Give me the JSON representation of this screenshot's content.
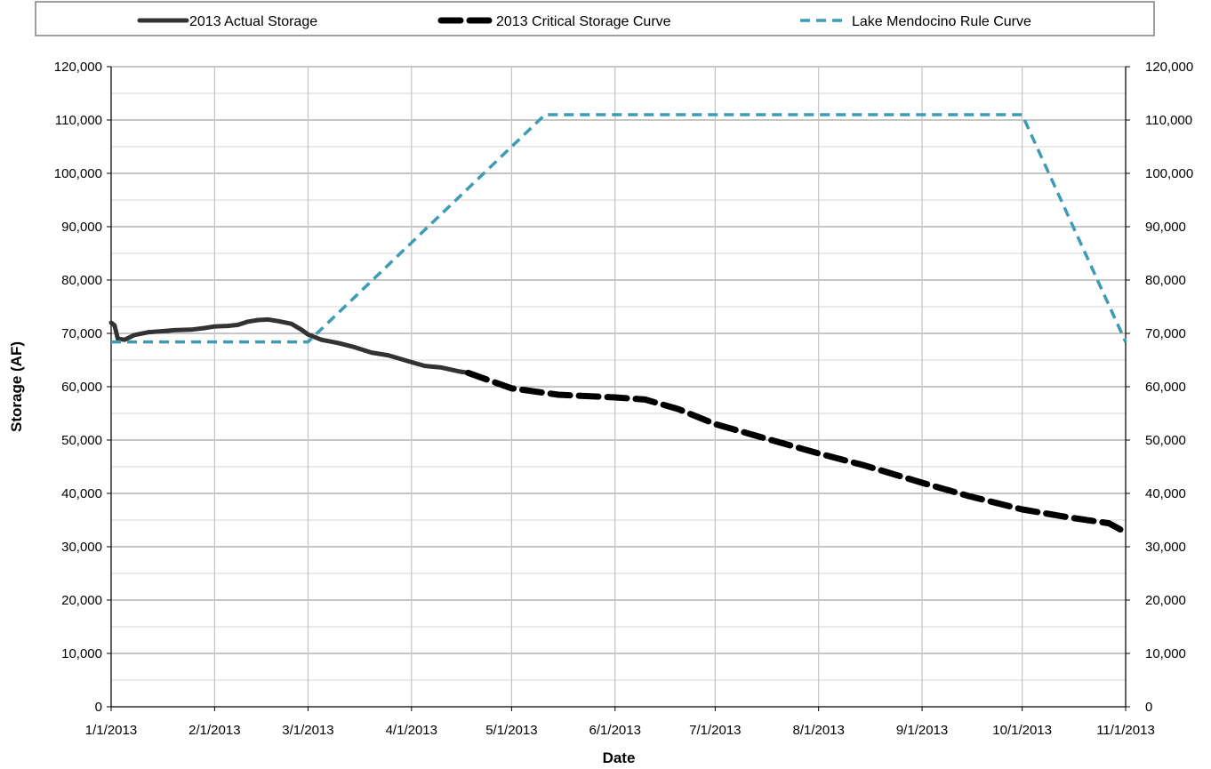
{
  "chart_data": {
    "type": "line",
    "title": "",
    "xlabel": "Date",
    "ylabel": "Storage (AF)",
    "x_axis_type": "date",
    "xlim": [
      "2013-01-01",
      "2013-11-01"
    ],
    "ylim": [
      0,
      120000
    ],
    "y_tick_step": 10000,
    "y_tick_labels": [
      "0",
      "10,000",
      "20,000",
      "30,000",
      "40,000",
      "50,000",
      "60,000",
      "70,000",
      "80,000",
      "90,000",
      "100,000",
      "110,000",
      "120,000"
    ],
    "x_tick_labels": [
      "1/1/2013",
      "2/1/2013",
      "3/1/2013",
      "4/1/2013",
      "5/1/2013",
      "6/1/2013",
      "7/1/2013",
      "8/1/2013",
      "9/1/2013",
      "10/1/2013",
      "11/1/2013"
    ],
    "secondary_y_axis": true,
    "grid": true,
    "legend": "top",
    "series": [
      {
        "name": "2013 Actual Storage",
        "color": "#333333",
        "style": "solid",
        "points": [
          [
            "2013-01-01",
            72000
          ],
          [
            "2013-01-02",
            71500
          ],
          [
            "2013-01-03",
            69000
          ],
          [
            "2013-01-05",
            68800
          ],
          [
            "2013-01-08",
            69700
          ],
          [
            "2013-01-12",
            70200
          ],
          [
            "2013-01-16",
            70400
          ],
          [
            "2013-01-20",
            70600
          ],
          [
            "2013-01-25",
            70700
          ],
          [
            "2013-01-29",
            71000
          ],
          [
            "2013-02-01",
            71300
          ],
          [
            "2013-02-05",
            71400
          ],
          [
            "2013-02-08",
            71600
          ],
          [
            "2013-02-11",
            72200
          ],
          [
            "2013-02-14",
            72500
          ],
          [
            "2013-02-17",
            72600
          ],
          [
            "2013-02-20",
            72300
          ],
          [
            "2013-02-24",
            71800
          ],
          [
            "2013-02-27",
            70700
          ],
          [
            "2013-03-01",
            69800
          ],
          [
            "2013-03-05",
            68800
          ],
          [
            "2013-03-10",
            68200
          ],
          [
            "2013-03-15",
            67400
          ],
          [
            "2013-03-20",
            66400
          ],
          [
            "2013-03-25",
            65900
          ],
          [
            "2013-04-01",
            64600
          ],
          [
            "2013-04-05",
            63900
          ],
          [
            "2013-04-10",
            63600
          ],
          [
            "2013-04-15",
            62900
          ],
          [
            "2013-04-18",
            62600
          ]
        ]
      },
      {
        "name": "2013 Critical Storage Curve",
        "color": "#000000",
        "style": "dashed",
        "points": [
          [
            "2013-04-18",
            62600
          ],
          [
            "2013-05-01",
            59700
          ],
          [
            "2013-05-15",
            58500
          ],
          [
            "2013-06-01",
            58000
          ],
          [
            "2013-06-10",
            57600
          ],
          [
            "2013-06-20",
            55800
          ],
          [
            "2013-07-01",
            53000
          ],
          [
            "2013-07-15",
            50500
          ],
          [
            "2013-08-01",
            47500
          ],
          [
            "2013-08-15",
            45200
          ],
          [
            "2013-09-01",
            42000
          ],
          [
            "2013-09-15",
            39500
          ],
          [
            "2013-10-01",
            37000
          ],
          [
            "2013-10-15",
            35500
          ],
          [
            "2013-10-27",
            34400
          ],
          [
            "2013-11-01",
            32700
          ]
        ]
      },
      {
        "name": "Lake Mendocino Rule Curve",
        "color": "#3D9BB5",
        "style": "dashed",
        "points": [
          [
            "2013-01-01",
            68400
          ],
          [
            "2013-03-01",
            68400
          ],
          [
            "2013-05-11",
            111000
          ],
          [
            "2013-10-01",
            111000
          ],
          [
            "2013-11-01",
            68400
          ]
        ]
      }
    ]
  }
}
